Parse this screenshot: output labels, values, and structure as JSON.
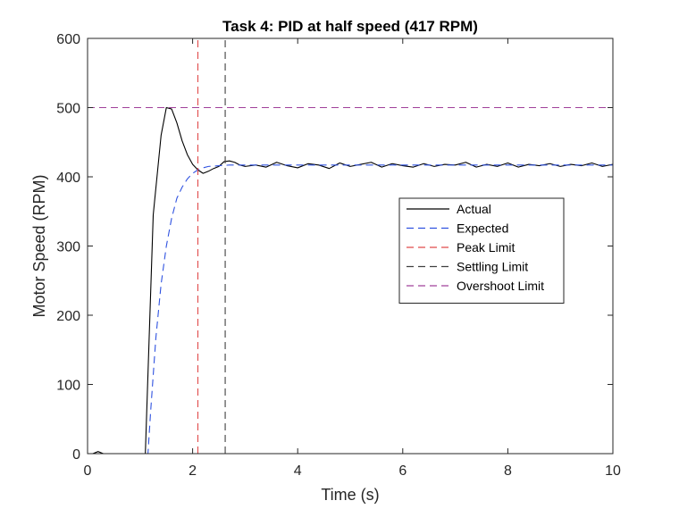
{
  "chart_data": {
    "type": "line",
    "title": "Task 4: PID at half speed (417 RPM)",
    "xlabel": "Time (s)",
    "ylabel": "Motor Speed (RPM)",
    "xlim": [
      0,
      10
    ],
    "ylim": [
      0,
      600
    ],
    "xticks": [
      0,
      2,
      4,
      6,
      8,
      10
    ],
    "yticks": [
      0,
      100,
      200,
      300,
      400,
      500,
      600
    ],
    "grid": false,
    "legend_position": "center-right",
    "series": [
      {
        "name": "Actual",
        "color": "#000000",
        "style": "solid",
        "x": [
          0,
          0.1,
          0.2,
          0.3,
          0.5,
          0.8,
          1.1,
          1.25,
          1.4,
          1.5,
          1.6,
          1.7,
          1.8,
          1.9,
          2.0,
          2.1,
          2.2,
          2.3,
          2.4,
          2.5,
          2.6,
          2.7,
          2.8,
          2.9,
          3.0,
          3.2,
          3.4,
          3.6,
          3.8,
          4.0,
          4.2,
          4.4,
          4.6,
          4.8,
          5.0,
          5.2,
          5.4,
          5.6,
          5.8,
          6.0,
          6.2,
          6.4,
          6.6,
          6.8,
          7.0,
          7.2,
          7.4,
          7.6,
          7.8,
          8.0,
          8.2,
          8.4,
          8.6,
          8.8,
          9.0,
          9.2,
          9.4,
          9.6,
          9.8,
          10.0
        ],
        "y": [
          0,
          0,
          3,
          0,
          0,
          0,
          0,
          345,
          460,
          500,
          498,
          478,
          452,
          432,
          418,
          410,
          405,
          408,
          412,
          415,
          422,
          423,
          421,
          417,
          415,
          417,
          414,
          421,
          416,
          413,
          419,
          417,
          412,
          420,
          415,
          418,
          421,
          414,
          419,
          416,
          414,
          419,
          415,
          418,
          417,
          421,
          414,
          418,
          415,
          420,
          414,
          418,
          416,
          419,
          415,
          418,
          416,
          420,
          415,
          418
        ]
      },
      {
        "name": "Expected",
        "color": "#2f52e0",
        "style": "dashed",
        "x": [
          0,
          0.5,
          1.0,
          1.15,
          1.2,
          1.3,
          1.4,
          1.5,
          1.6,
          1.7,
          1.8,
          1.9,
          2.0,
          2.1,
          2.2,
          2.3,
          2.5,
          2.7,
          3.0,
          3.5,
          4.0,
          5.0,
          6.0,
          7.0,
          8.0,
          9.0,
          10.0
        ],
        "y": [
          0,
          0,
          0,
          0,
          60,
          167,
          245,
          300,
          340,
          369,
          385,
          397,
          405,
          410,
          413,
          415,
          416,
          417,
          417,
          417,
          417,
          417,
          417,
          417,
          417,
          417,
          417
        ]
      },
      {
        "name": "Peak Limit",
        "color": "#e04a4a",
        "style": "dashed",
        "x": [
          2.1,
          2.1
        ],
        "y": [
          0,
          600
        ]
      },
      {
        "name": "Settling Limit",
        "color": "#404040",
        "style": "dashed",
        "x": [
          2.62,
          2.62
        ],
        "y": [
          0,
          600
        ]
      },
      {
        "name": "Overshoot Limit",
        "color": "#a0409a",
        "style": "dashed",
        "x": [
          0,
          10
        ],
        "y": [
          500,
          500
        ]
      }
    ]
  }
}
